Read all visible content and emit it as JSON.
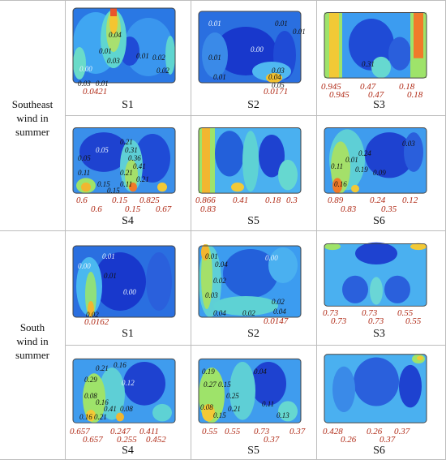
{
  "rows": [
    {
      "label": [
        "Southeast",
        "wind in",
        "summer"
      ],
      "cells": [
        {
          "name": "S1",
          "values": [
            "0.0421"
          ],
          "inner": [
            "0.04",
            "0.01",
            "0.03",
            "0.00",
            "0.01",
            "0.02",
            "0.03",
            "0.01",
            "0.02"
          ]
        },
        {
          "name": "S2",
          "values": [
            "0.0171"
          ],
          "inner": [
            "0.00",
            "0.01",
            "0.01",
            "0.03",
            "0.04",
            "0.05",
            "0.01",
            "0.01",
            "0.01"
          ]
        },
        {
          "name": "S3",
          "values": [
            "0.945",
            "0.47",
            "0.18",
            "0.945",
            "0.47",
            "0.18"
          ],
          "inner": [
            "0.31"
          ]
        },
        {
          "name": "S4",
          "values": [
            "0.6",
            "0.15",
            "0.825",
            "0.6",
            "0.15",
            "0.67"
          ],
          "inner": [
            "0.21",
            "0.05",
            "0.31",
            "0.36",
            "0.41",
            "0.15",
            "0.11",
            "0.21",
            "0.21",
            "0.15",
            "0.11",
            "0.05"
          ]
        },
        {
          "name": "S5",
          "values": [
            "0.866",
            "0.41",
            "0.18",
            "0.3",
            "0.83"
          ],
          "inner": []
        },
        {
          "name": "S6",
          "values": [
            "0.89",
            "0.24",
            "0.12",
            "0.83",
            "0.35"
          ],
          "inner": [
            "0.24",
            "0.03",
            "0.09",
            "0.19",
            "0.16",
            "0.11",
            "0.01"
          ]
        }
      ]
    },
    {
      "label": [
        "South",
        "wind in",
        "summer"
      ],
      "cells": [
        {
          "name": "S1",
          "values": [
            "0.0162"
          ],
          "inner": [
            "0.01",
            "0.00",
            "0.01",
            "0.00",
            "0.02"
          ]
        },
        {
          "name": "S2",
          "values": [
            "0.0147"
          ],
          "inner": [
            "0.01",
            "0.04",
            "0.02",
            "0.03",
            "0.00",
            "0.02",
            "0.04",
            "0.02",
            "0.04"
          ]
        },
        {
          "name": "S3",
          "values": [
            "0.73",
            "0.73",
            "0.55",
            "0.73",
            "0.73",
            "0.55"
          ],
          "inner": []
        },
        {
          "name": "S4",
          "values": [
            "0.657",
            "0.247",
            "0.411",
            "0.657",
            "0.255",
            "0.452"
          ],
          "inner": [
            "0.21",
            "0.16",
            "0.29",
            "0.08",
            "0.16",
            "0.41",
            "0.08",
            "0.16",
            "0.21",
            "0.12"
          ]
        },
        {
          "name": "S5",
          "values": [
            "0.55",
            "0.55",
            "0.73",
            "0.37",
            "0.37"
          ],
          "inner": [
            "0.19",
            "0.27",
            "0.15",
            "0.25",
            "0.08",
            "0.21",
            "0.11",
            "0.15",
            "0.04",
            "0.13"
          ]
        },
        {
          "name": "S6",
          "values": [
            "0.428",
            "0.26",
            "0.37",
            "0.26",
            "0.37"
          ],
          "inner": []
        }
      ]
    }
  ]
}
